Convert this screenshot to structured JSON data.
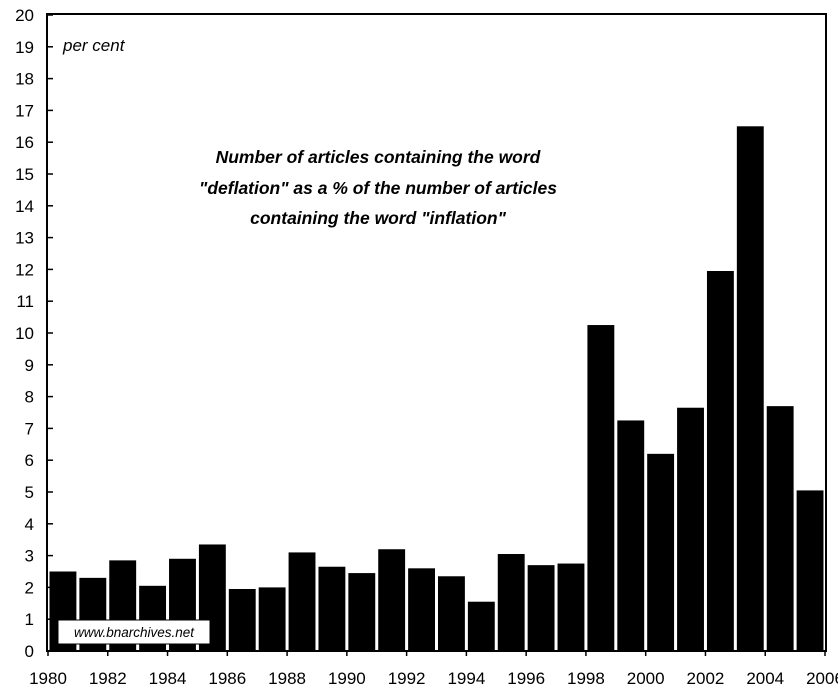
{
  "chart_data": {
    "type": "bar",
    "title_lines": [
      "Number of articles containing the word",
      "\"deflation\" as a % of the number of articles",
      "containing the word \"inflation\""
    ],
    "unit_label": "per cent",
    "watermark": "www.bnarchives.net",
    "asterisk_note": "*",
    "x": [
      1980,
      1981,
      1982,
      1983,
      1984,
      1985,
      1986,
      1987,
      1988,
      1989,
      1990,
      1991,
      1992,
      1993,
      1994,
      1995,
      1996,
      1997,
      1998,
      1999,
      2000,
      2001,
      2002,
      2003,
      2004,
      2005
    ],
    "values": [
      2.5,
      2.3,
      2.85,
      2.05,
      2.9,
      3.35,
      1.95,
      2.0,
      3.1,
      2.65,
      2.45,
      3.2,
      2.6,
      2.35,
      1.55,
      3.05,
      2.7,
      2.75,
      10.25,
      7.25,
      6.2,
      7.65,
      11.95,
      16.5,
      7.7,
      5.05
    ],
    "x_ticks": [
      "1980",
      "1982",
      "1984",
      "1986",
      "1988",
      "1990",
      "1992",
      "1994",
      "1996",
      "1998",
      "2000",
      "2002",
      "2004",
      "2006"
    ],
    "y_ticks": [
      "0",
      "1",
      "2",
      "3",
      "4",
      "5",
      "6",
      "7",
      "8",
      "9",
      "10",
      "11",
      "12",
      "13",
      "14",
      "15",
      "16",
      "17",
      "18",
      "19",
      "20"
    ],
    "ylim": [
      0,
      20
    ],
    "xlim": [
      1980,
      2006
    ],
    "bar_color": "#000000",
    "grid": false
  }
}
